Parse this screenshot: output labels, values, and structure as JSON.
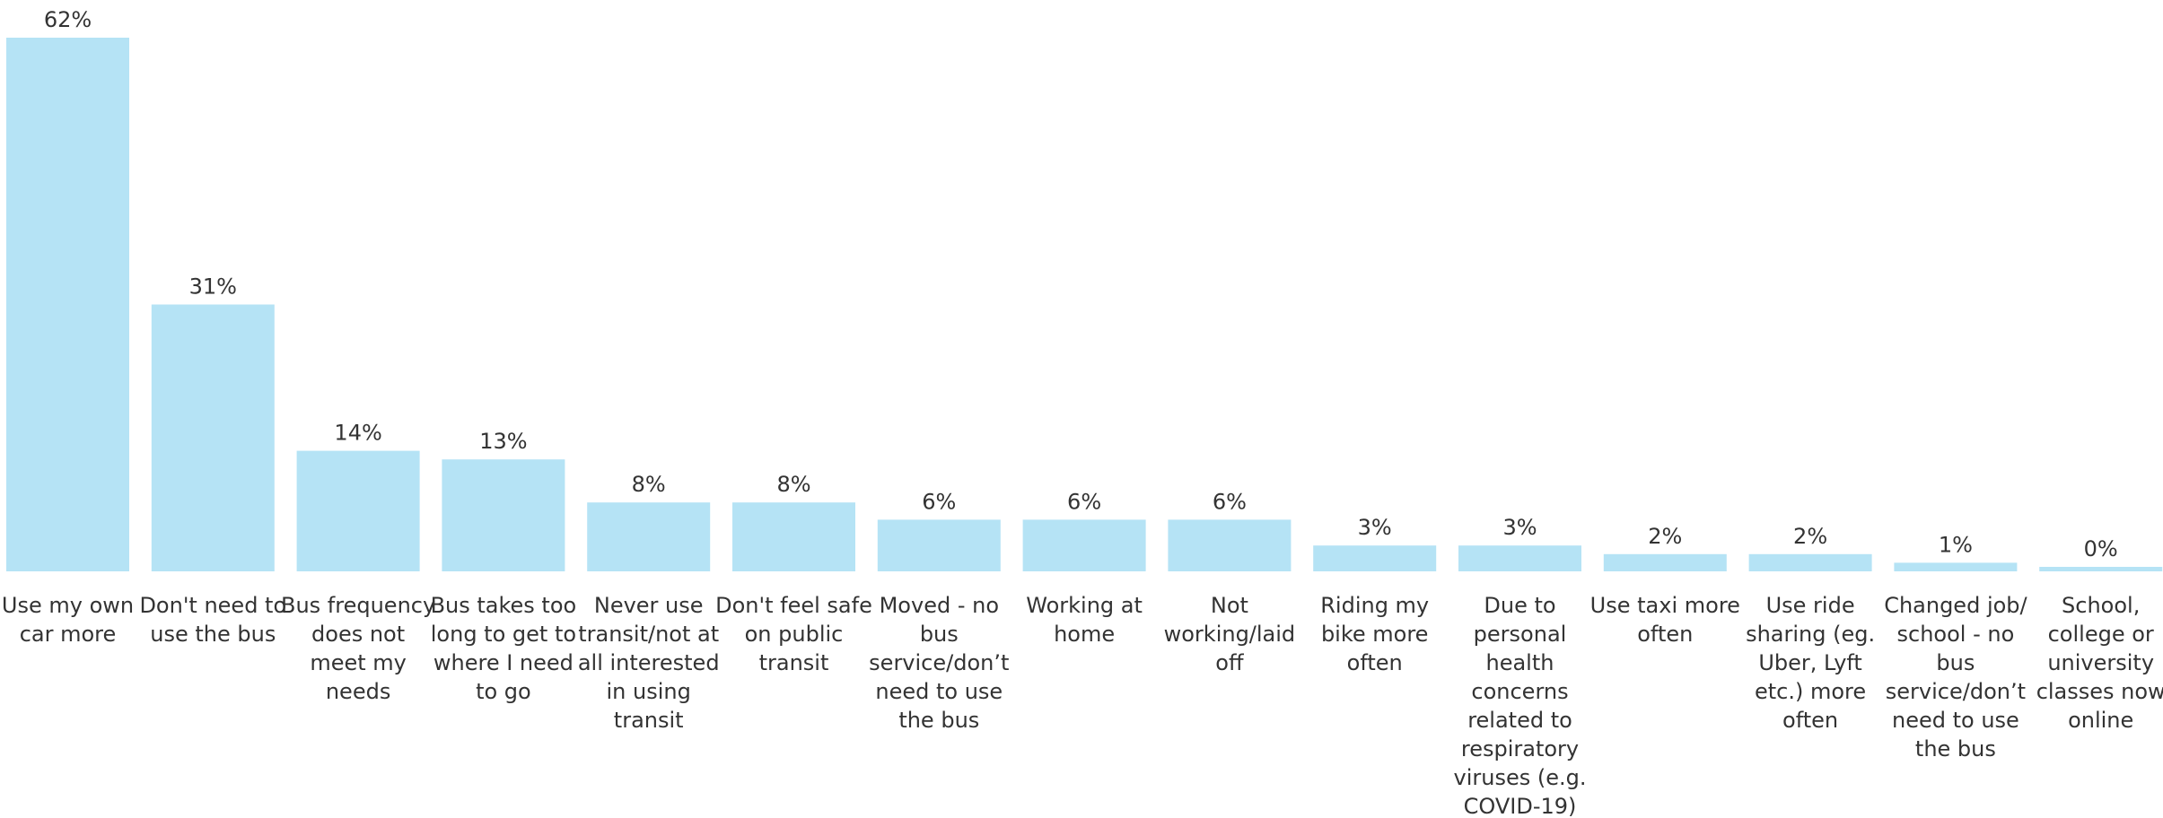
{
  "chart_data": {
    "type": "bar",
    "title": "",
    "xlabel": "",
    "ylabel": "",
    "ylim": [
      0,
      62
    ],
    "grid": false,
    "bar_color": "#b5e3f5",
    "text_color": "#333333",
    "categories": [
      [
        "Use my own",
        "car more"
      ],
      [
        "Don't need to",
        "use the bus"
      ],
      [
        "Bus frequency",
        "does not",
        "meet my",
        "needs"
      ],
      [
        "Bus takes too",
        "long to get to",
        "where I need",
        "to go"
      ],
      [
        "Never use",
        "transit/not at",
        "all interested",
        "in using",
        "transit"
      ],
      [
        "Don't feel safe",
        "on public",
        "transit"
      ],
      [
        "Moved - no",
        "bus",
        "service/don’t",
        "need to use",
        "the bus"
      ],
      [
        "Working at",
        "home"
      ],
      [
        "Not",
        "working/laid",
        "off"
      ],
      [
        "Riding my",
        "bike more",
        "often"
      ],
      [
        "Due to",
        "personal",
        "health",
        "concerns",
        "related to",
        "respiratory",
        "viruses (e.g.",
        "COVID-19)"
      ],
      [
        "Use taxi more",
        "often"
      ],
      [
        "Use ride",
        "sharing (eg.",
        "Uber, Lyft",
        "etc.) more",
        "often"
      ],
      [
        "Changed job/",
        "school - no",
        "bus",
        "service/don’t",
        "need to use",
        "the bus"
      ],
      [
        "School,",
        "college or",
        "university",
        "classes now",
        "online"
      ]
    ],
    "values": [
      62,
      31,
      14,
      13,
      8,
      8,
      6,
      6,
      6,
      3,
      3,
      2,
      2,
      1,
      0
    ],
    "value_labels": [
      "62%",
      "31%",
      "14%",
      "13%",
      "8%",
      "8%",
      "6%",
      "6%",
      "6%",
      "3%",
      "3%",
      "2%",
      "2%",
      "1%",
      "0%"
    ]
  }
}
